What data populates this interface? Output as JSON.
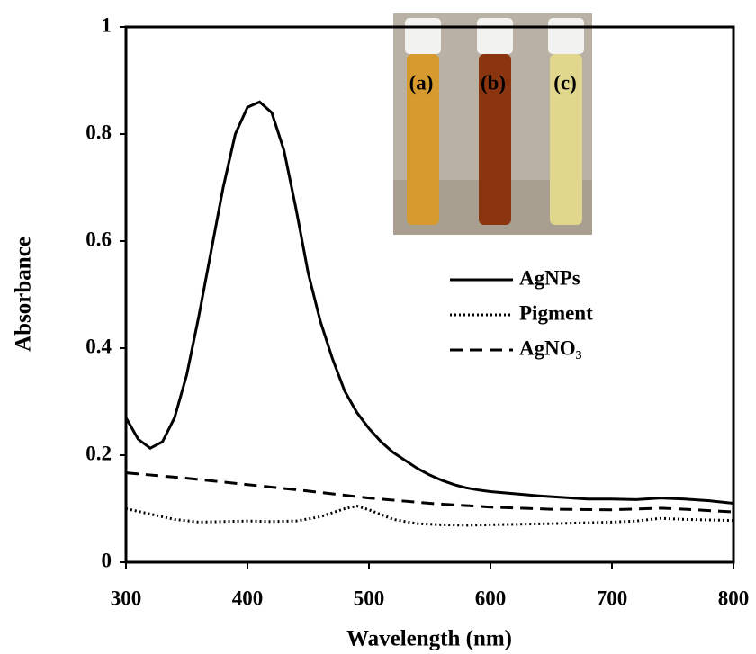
{
  "chart_data": {
    "type": "line",
    "x_label": "Wavelength (nm)",
    "y_label": "Absorbance",
    "xlim": [
      300,
      800
    ],
    "xticks": [
      300,
      400,
      500,
      600,
      700,
      800
    ],
    "ylim": [
      0,
      1
    ],
    "yticks": [
      0,
      0.2,
      0.4,
      0.6,
      0.8,
      1
    ],
    "inset_labels": [
      "(a)",
      "(b)",
      "(c)"
    ],
    "series": [
      {
        "name": "AgNPs",
        "color": "#000000",
        "dash": "solid",
        "x": [
          300,
          310,
          320,
          330,
          340,
          350,
          360,
          370,
          380,
          390,
          400,
          410,
          420,
          430,
          440,
          450,
          460,
          470,
          480,
          490,
          500,
          510,
          520,
          530,
          540,
          550,
          560,
          570,
          580,
          590,
          600,
          620,
          640,
          660,
          680,
          700,
          720,
          740,
          760,
          780,
          800
        ],
        "values": [
          0.27,
          0.23,
          0.213,
          0.225,
          0.27,
          0.35,
          0.46,
          0.58,
          0.7,
          0.8,
          0.85,
          0.86,
          0.84,
          0.77,
          0.66,
          0.54,
          0.45,
          0.38,
          0.32,
          0.28,
          0.25,
          0.225,
          0.205,
          0.19,
          0.175,
          0.163,
          0.153,
          0.145,
          0.139,
          0.135,
          0.132,
          0.128,
          0.124,
          0.121,
          0.118,
          0.118,
          0.117,
          0.12,
          0.118,
          0.115,
          0.11
        ]
      },
      {
        "name": "Pigment",
        "color": "#000000",
        "dash": "dotted",
        "x": [
          300,
          320,
          340,
          360,
          380,
          400,
          420,
          440,
          460,
          480,
          490,
          500,
          520,
          540,
          560,
          580,
          600,
          650,
          700,
          720,
          740,
          760,
          800
        ],
        "values": [
          0.1,
          0.09,
          0.08,
          0.075,
          0.076,
          0.077,
          0.076,
          0.077,
          0.085,
          0.1,
          0.105,
          0.098,
          0.08,
          0.072,
          0.07,
          0.069,
          0.07,
          0.072,
          0.075,
          0.077,
          0.082,
          0.08,
          0.078
        ]
      },
      {
        "name": "AgNO₃",
        "color": "#000000",
        "dash": "dashed",
        "x": [
          300,
          350,
          400,
          450,
          500,
          550,
          600,
          650,
          700,
          740,
          760,
          800
        ],
        "values": [
          0.167,
          0.157,
          0.145,
          0.133,
          0.12,
          0.11,
          0.103,
          0.099,
          0.098,
          0.101,
          0.099,
          0.094
        ]
      }
    ]
  }
}
